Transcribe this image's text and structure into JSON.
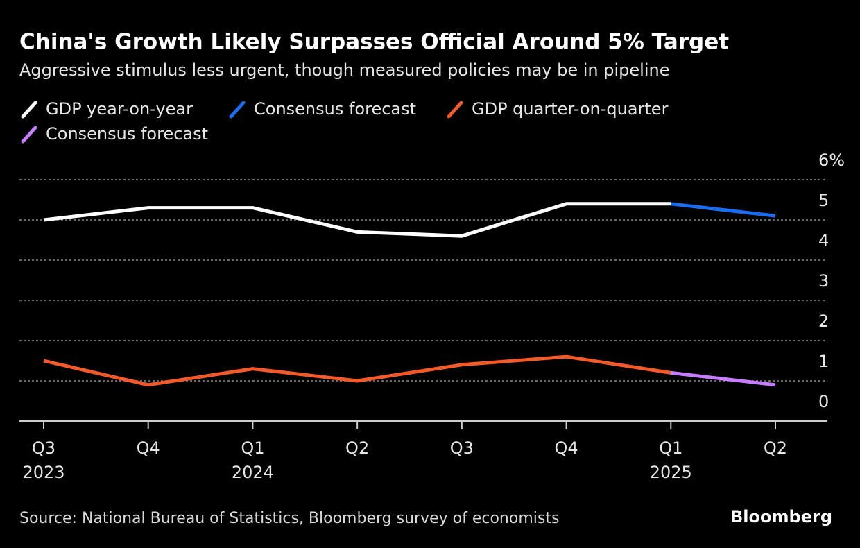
{
  "chart_data": {
    "type": "line",
    "title": "China's Growth Likely Surpasses Official Around 5% Target",
    "subtitle": "Aggressive stimulus less urgent, though measured policies may be in pipeline",
    "source": "Source: National Bureau of Statistics, Bloomberg survey of economists",
    "brand": "Bloomberg",
    "categories": [
      "Q3",
      "Q4",
      "Q1",
      "Q2",
      "Q3",
      "Q4",
      "Q1",
      "Q2"
    ],
    "years": [
      "2023",
      null,
      "2024",
      null,
      null,
      null,
      "2025",
      null
    ],
    "series": [
      {
        "name": "GDP year-on-year",
        "color": "#ffffff",
        "values": [
          5.0,
          5.3,
          5.3,
          4.7,
          4.6,
          5.4,
          5.4,
          null
        ]
      },
      {
        "name": "Consensus forecast",
        "color": "#1a6cf0",
        "values": [
          null,
          null,
          null,
          null,
          null,
          null,
          5.4,
          5.1
        ]
      },
      {
        "name": "GDP quarter-on-quarter",
        "color": "#f25a2a",
        "values": [
          1.5,
          0.9,
          1.3,
          1.0,
          1.4,
          1.6,
          1.2,
          null
        ]
      },
      {
        "name": "Consensus forecast",
        "color": "#c77dff",
        "values": [
          null,
          null,
          null,
          null,
          null,
          null,
          1.2,
          0.9
        ]
      }
    ],
    "ylim": [
      0,
      6
    ],
    "yticks": [
      0,
      1,
      2,
      3,
      4,
      5,
      {
        "value": 6,
        "label": "6%"
      }
    ],
    "grid": true
  }
}
